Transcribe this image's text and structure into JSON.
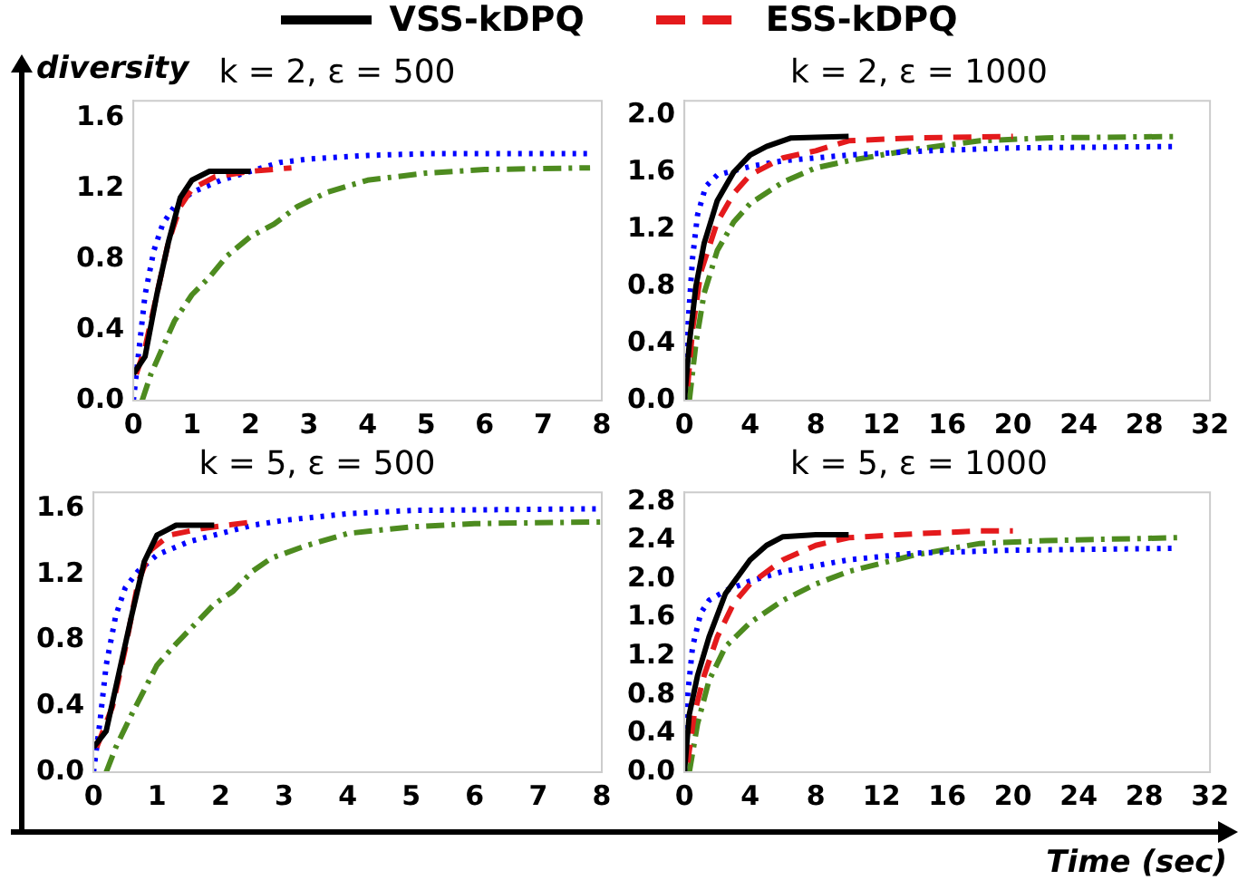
{
  "chart_data": [
    {
      "type": "line",
      "title": "k = 2, ε = 500",
      "ylabel": "diversity",
      "xlim": [
        0,
        8
      ],
      "xticks": [
        0,
        1,
        2,
        3,
        4,
        5,
        6,
        7,
        8
      ],
      "ylim": [
        0,
        1.7
      ],
      "yticks": [
        {
          "value": 0,
          "label": "0.0"
        },
        {
          "value": 0.4,
          "label": "0.4"
        },
        {
          "value": 0.8,
          "label": "0.8"
        },
        {
          "value": 1.2,
          "label": "1.2"
        },
        {
          "value": 1.6,
          "label": "1.6"
        }
      ],
      "grid": false,
      "legend": "top",
      "marker": "none",
      "series": [
        {
          "name": "VSS-kDPQ",
          "color": "#000000",
          "line_style": "solid",
          "x": [
            0,
            0.2,
            0.4,
            0.6,
            0.8,
            1,
            1.3,
            2
          ],
          "values": [
            0.15,
            0.25,
            0.6,
            0.9,
            1.15,
            1.25,
            1.3,
            1.3
          ]
        },
        {
          "name": "ESS-kDPQ",
          "color": "#e41a1c",
          "line_style": "dashed",
          "x": [
            0.05,
            0.2,
            0.4,
            0.6,
            0.8,
            1,
            1.4,
            2,
            2.7
          ],
          "values": [
            0.15,
            0.3,
            0.6,
            0.9,
            1.1,
            1.2,
            1.27,
            1.3,
            1.32
          ]
        },
        {
          "color": "#0000ff",
          "line_style": "dotted",
          "x": [
            0,
            0.1,
            0.2,
            0.35,
            0.5,
            0.7,
            1,
            1.5,
            2,
            2.5,
            3,
            4,
            5,
            7.8
          ],
          "values": [
            0,
            0.3,
            0.6,
            0.85,
            1.0,
            1.1,
            1.18,
            1.25,
            1.3,
            1.35,
            1.37,
            1.39,
            1.4,
            1.4
          ]
        },
        {
          "color": "#4d8b1f",
          "line_style": "dashdot",
          "x": [
            0.15,
            0.3,
            0.5,
            0.7,
            1,
            1.3,
            1.6,
            2,
            2.4,
            2.8,
            3.3,
            4,
            5,
            6,
            7.8
          ],
          "values": [
            0,
            0.15,
            0.3,
            0.45,
            0.6,
            0.7,
            0.82,
            0.93,
            1.0,
            1.1,
            1.18,
            1.25,
            1.29,
            1.31,
            1.32
          ]
        }
      ]
    },
    {
      "type": "line",
      "title": "k = 2, ε = 1000",
      "xlim": [
        0,
        32
      ],
      "xticks": [
        0,
        4,
        8,
        12,
        16,
        20,
        24,
        28,
        32
      ],
      "ylim": [
        0,
        2.1
      ],
      "yticks": [
        {
          "value": 0,
          "label": "0.0"
        },
        {
          "value": 0.4,
          "label": "0.4"
        },
        {
          "value": 0.8,
          "label": "0.8"
        },
        {
          "value": 1.2,
          "label": "1.2"
        },
        {
          "value": 1.6,
          "label": "1.6"
        },
        {
          "value": 2.0,
          "label": "2.0"
        }
      ],
      "grid": false,
      "marker": "none",
      "series": [
        {
          "color": "#000000",
          "line_style": "solid",
          "x": [
            0,
            0.3,
            0.7,
            1.2,
            2,
            3,
            4,
            5,
            6.5,
            10
          ],
          "values": [
            0,
            0.4,
            0.8,
            1.1,
            1.4,
            1.6,
            1.72,
            1.78,
            1.84,
            1.85
          ]
        },
        {
          "color": "#e41a1c",
          "line_style": "dashed",
          "x": [
            0.2,
            0.5,
            1,
            2,
            3,
            4,
            6,
            8,
            10,
            14,
            20
          ],
          "values": [
            0.1,
            0.5,
            0.9,
            1.25,
            1.45,
            1.58,
            1.7,
            1.75,
            1.82,
            1.84,
            1.85
          ]
        },
        {
          "color": "#0000ff",
          "line_style": "dotted",
          "x": [
            0,
            0.2,
            0.5,
            0.8,
            1.3,
            2,
            3,
            4,
            6,
            10,
            15,
            20,
            30
          ],
          "values": [
            0,
            0.5,
            1.0,
            1.3,
            1.5,
            1.58,
            1.61,
            1.64,
            1.68,
            1.72,
            1.75,
            1.77,
            1.78
          ]
        },
        {
          "color": "#4d8b1f",
          "line_style": "dashdot",
          "x": [
            0.3,
            0.7,
            1.2,
            2,
            3,
            4,
            6,
            8,
            10,
            14,
            18,
            22,
            30
          ],
          "values": [
            0,
            0.4,
            0.75,
            1.05,
            1.25,
            1.38,
            1.53,
            1.63,
            1.68,
            1.76,
            1.82,
            1.84,
            1.85
          ]
        }
      ]
    },
    {
      "type": "line",
      "title": "k = 5, ε = 500",
      "xlim": [
        0,
        8
      ],
      "xticks": [
        0,
        1,
        2,
        3,
        4,
        5,
        6,
        7,
        8
      ],
      "ylim": [
        0,
        1.7
      ],
      "yticks": [
        {
          "value": 0,
          "label": "0.0"
        },
        {
          "value": 0.4,
          "label": "0.4"
        },
        {
          "value": 0.8,
          "label": "0.8"
        },
        {
          "value": 1.2,
          "label": "1.2"
        },
        {
          "value": 1.6,
          "label": "1.6"
        }
      ],
      "grid": false,
      "marker": "none",
      "series": [
        {
          "color": "#000000",
          "line_style": "solid",
          "x": [
            0,
            0.2,
            0.4,
            0.6,
            0.8,
            1,
            1.1,
            1.3,
            1.9
          ],
          "values": [
            0.15,
            0.25,
            0.6,
            0.95,
            1.28,
            1.44,
            1.46,
            1.5,
            1.5
          ]
        },
        {
          "color": "#e41a1c",
          "line_style": "dashed",
          "x": [
            0.05,
            0.3,
            0.5,
            0.7,
            0.9,
            1.2,
            1.7,
            2.5
          ],
          "values": [
            0.15,
            0.4,
            0.75,
            1.15,
            1.35,
            1.44,
            1.48,
            1.52
          ]
        },
        {
          "color": "#0000ff",
          "line_style": "dotted",
          "x": [
            0,
            0.1,
            0.2,
            0.35,
            0.5,
            0.7,
            1,
            1.5,
            2,
            2.5,
            3,
            4,
            5,
            8
          ],
          "values": [
            0,
            0.3,
            0.65,
            0.95,
            1.12,
            1.22,
            1.32,
            1.4,
            1.45,
            1.5,
            1.53,
            1.57,
            1.59,
            1.6
          ]
        },
        {
          "color": "#4d8b1f",
          "line_style": "dashdot",
          "x": [
            0.2,
            0.35,
            0.6,
            0.8,
            1,
            1.3,
            1.6,
            1.9,
            2.2,
            2.5,
            2.8,
            3.3,
            4,
            5,
            6,
            8
          ],
          "values": [
            0,
            0.15,
            0.35,
            0.5,
            0.65,
            0.78,
            0.9,
            1.02,
            1.1,
            1.22,
            1.3,
            1.37,
            1.45,
            1.49,
            1.51,
            1.52
          ]
        }
      ]
    },
    {
      "type": "line",
      "title": "k = 5, ε = 1000",
      "xlabel": "Time (sec)",
      "xlim": [
        0,
        32
      ],
      "xticks": [
        0,
        4,
        8,
        12,
        16,
        20,
        24,
        28,
        32
      ],
      "ylim": [
        0,
        2.9
      ],
      "yticks": [
        {
          "value": 0,
          "label": "0.0"
        },
        {
          "value": 0.4,
          "label": "0.4"
        },
        {
          "value": 0.8,
          "label": "0.8"
        },
        {
          "value": 1.2,
          "label": "1.2"
        },
        {
          "value": 1.6,
          "label": "1.6"
        },
        {
          "value": 2.0,
          "label": "2.0"
        },
        {
          "value": 2.4,
          "label": "2.4"
        },
        {
          "value": 2.8,
          "label": "2.8"
        }
      ],
      "grid": false,
      "marker": "none",
      "series": [
        {
          "color": "#000000",
          "line_style": "solid",
          "x": [
            0,
            0.3,
            0.8,
            1.5,
            2.5,
            4,
            5,
            6,
            8,
            10
          ],
          "values": [
            0,
            0.6,
            1.0,
            1.4,
            1.85,
            2.2,
            2.35,
            2.44,
            2.46,
            2.46
          ]
        },
        {
          "color": "#e41a1c",
          "line_style": "dashed",
          "x": [
            0.2,
            0.6,
            1.2,
            2,
            3,
            4,
            6,
            8,
            10,
            14,
            18,
            20
          ],
          "values": [
            0.1,
            0.6,
            1.0,
            1.4,
            1.75,
            1.95,
            2.2,
            2.35,
            2.43,
            2.47,
            2.5,
            2.5
          ]
        },
        {
          "color": "#0000ff",
          "line_style": "dotted",
          "x": [
            0,
            0.2,
            0.5,
            1,
            1.5,
            2.5,
            4,
            6,
            10,
            14,
            20,
            30
          ],
          "values": [
            0,
            0.8,
            1.3,
            1.65,
            1.78,
            1.88,
            1.98,
            2.08,
            2.2,
            2.27,
            2.3,
            2.32
          ]
        },
        {
          "color": "#4d8b1f",
          "line_style": "dashdot",
          "x": [
            0.3,
            0.8,
            1.5,
            2.5,
            4,
            6,
            8,
            10,
            14,
            18,
            22,
            30
          ],
          "values": [
            0,
            0.5,
            0.95,
            1.3,
            1.55,
            1.78,
            1.95,
            2.08,
            2.25,
            2.37,
            2.4,
            2.43
          ]
        }
      ]
    }
  ]
}
